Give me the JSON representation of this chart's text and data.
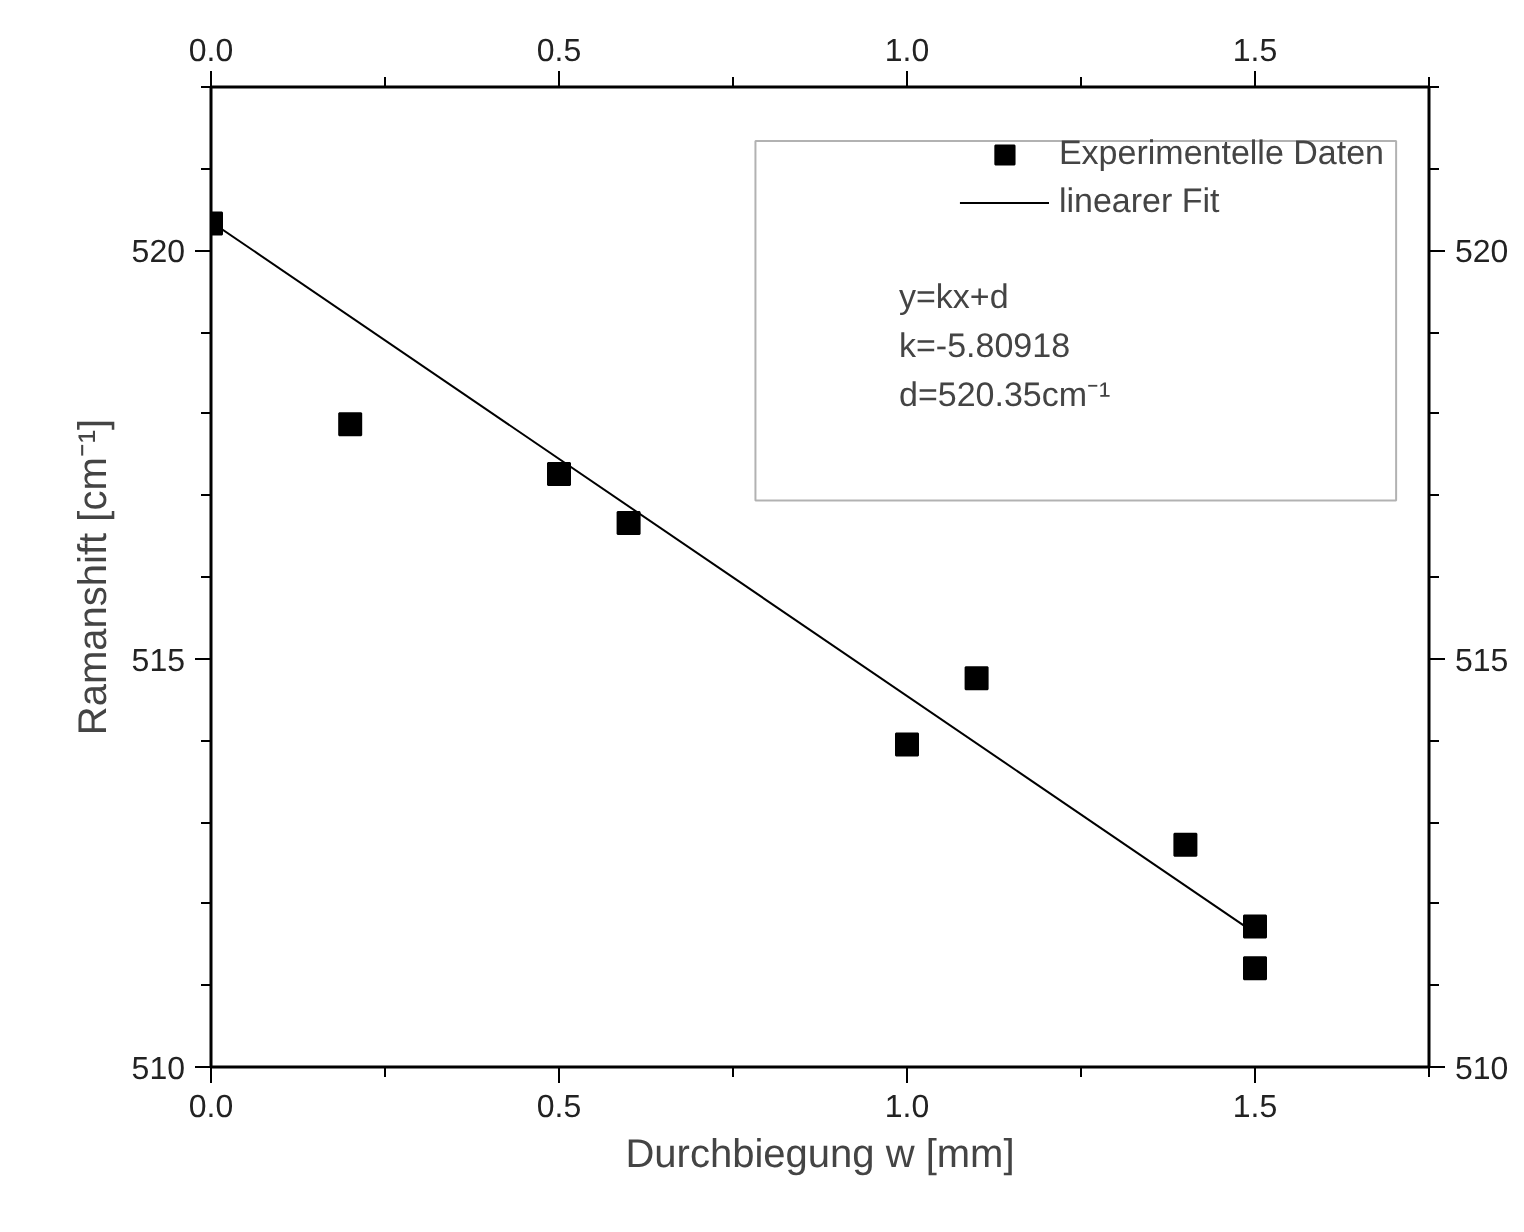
{
  "chart_data": {
    "type": "scatter",
    "xlabel": "Durchbiegung w [mm]",
    "ylabel": "Ramanshift [cm⁻¹]",
    "series": [
      {
        "name": "Experimentelle Daten",
        "color": "#000000",
        "marker": "square",
        "x": [
          0,
          0.2,
          0.5,
          0.6,
          1.0,
          1.1,
          1.4,
          1.5,
          1.5
        ],
        "values": [
          520.33,
          517.87,
          517.26,
          516.66,
          513.95,
          514.76,
          512.72,
          511.72,
          511.21
        ]
      },
      {
        "name": "linearer Fit",
        "type": "line",
        "color": "#000000",
        "marker": "none",
        "line_style": "solid",
        "x": [
          0,
          1.5
        ],
        "values": [
          520.35,
          511.64
        ]
      }
    ],
    "annotations": [
      "y=kx+d",
      "k=-5.80918",
      "d=520.35cm⁻¹"
    ],
    "xlim": [
      0,
      1.75
    ],
    "xticks": [
      {
        "value": 0,
        "label": "0.0"
      },
      {
        "value": 0.5,
        "label": "0.5"
      },
      {
        "value": 1,
        "label": "1.0"
      },
      {
        "value": 1.5,
        "label": "1.5"
      }
    ],
    "x2lim": [
      0,
      1.75
    ],
    "x2ticks": [
      {
        "value": 0,
        "label": "0.0"
      },
      {
        "value": 0.5,
        "label": "0.5"
      },
      {
        "value": 1,
        "label": "1.0"
      },
      {
        "value": 1.5,
        "label": "1.5"
      }
    ],
    "ylim": [
      510,
      522
    ],
    "yticks": [
      510,
      515,
      520
    ],
    "y2lim": [
      510,
      522
    ],
    "y2ticks": [
      510,
      515,
      520
    ],
    "grid": false,
    "legend": "top right"
  }
}
